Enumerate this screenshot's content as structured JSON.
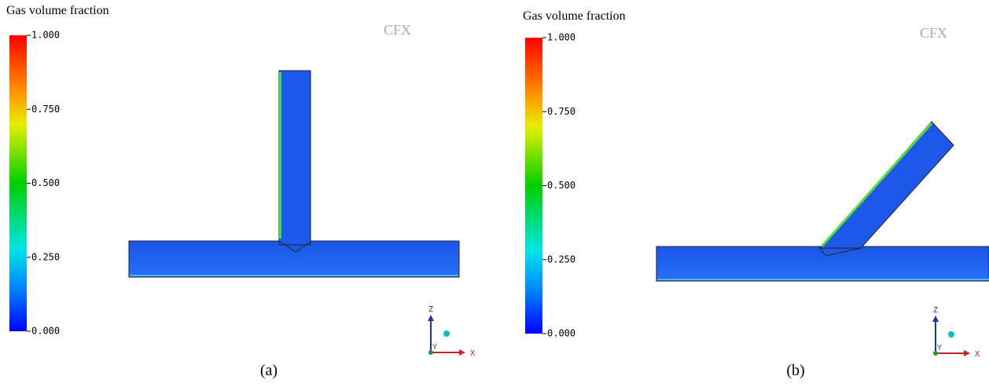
{
  "panels": [
    {
      "legend_title": "Gas volume fraction",
      "scale_labels": [
        "1.000",
        "0.750",
        "0.500",
        "0.250",
        "0.000"
      ],
      "watermark": "CFX",
      "axes": {
        "z": "Z",
        "y": "Y",
        "x": "X"
      },
      "caption": "(a)"
    },
    {
      "legend_title": "Gas volume fraction",
      "scale_labels": [
        "1.000",
        "0.750",
        "0.500",
        "0.250",
        "0.000"
      ],
      "watermark": "CFX",
      "axes": {
        "z": "Z",
        "y": "Y",
        "x": "X"
      },
      "caption": "(b)"
    }
  ]
}
